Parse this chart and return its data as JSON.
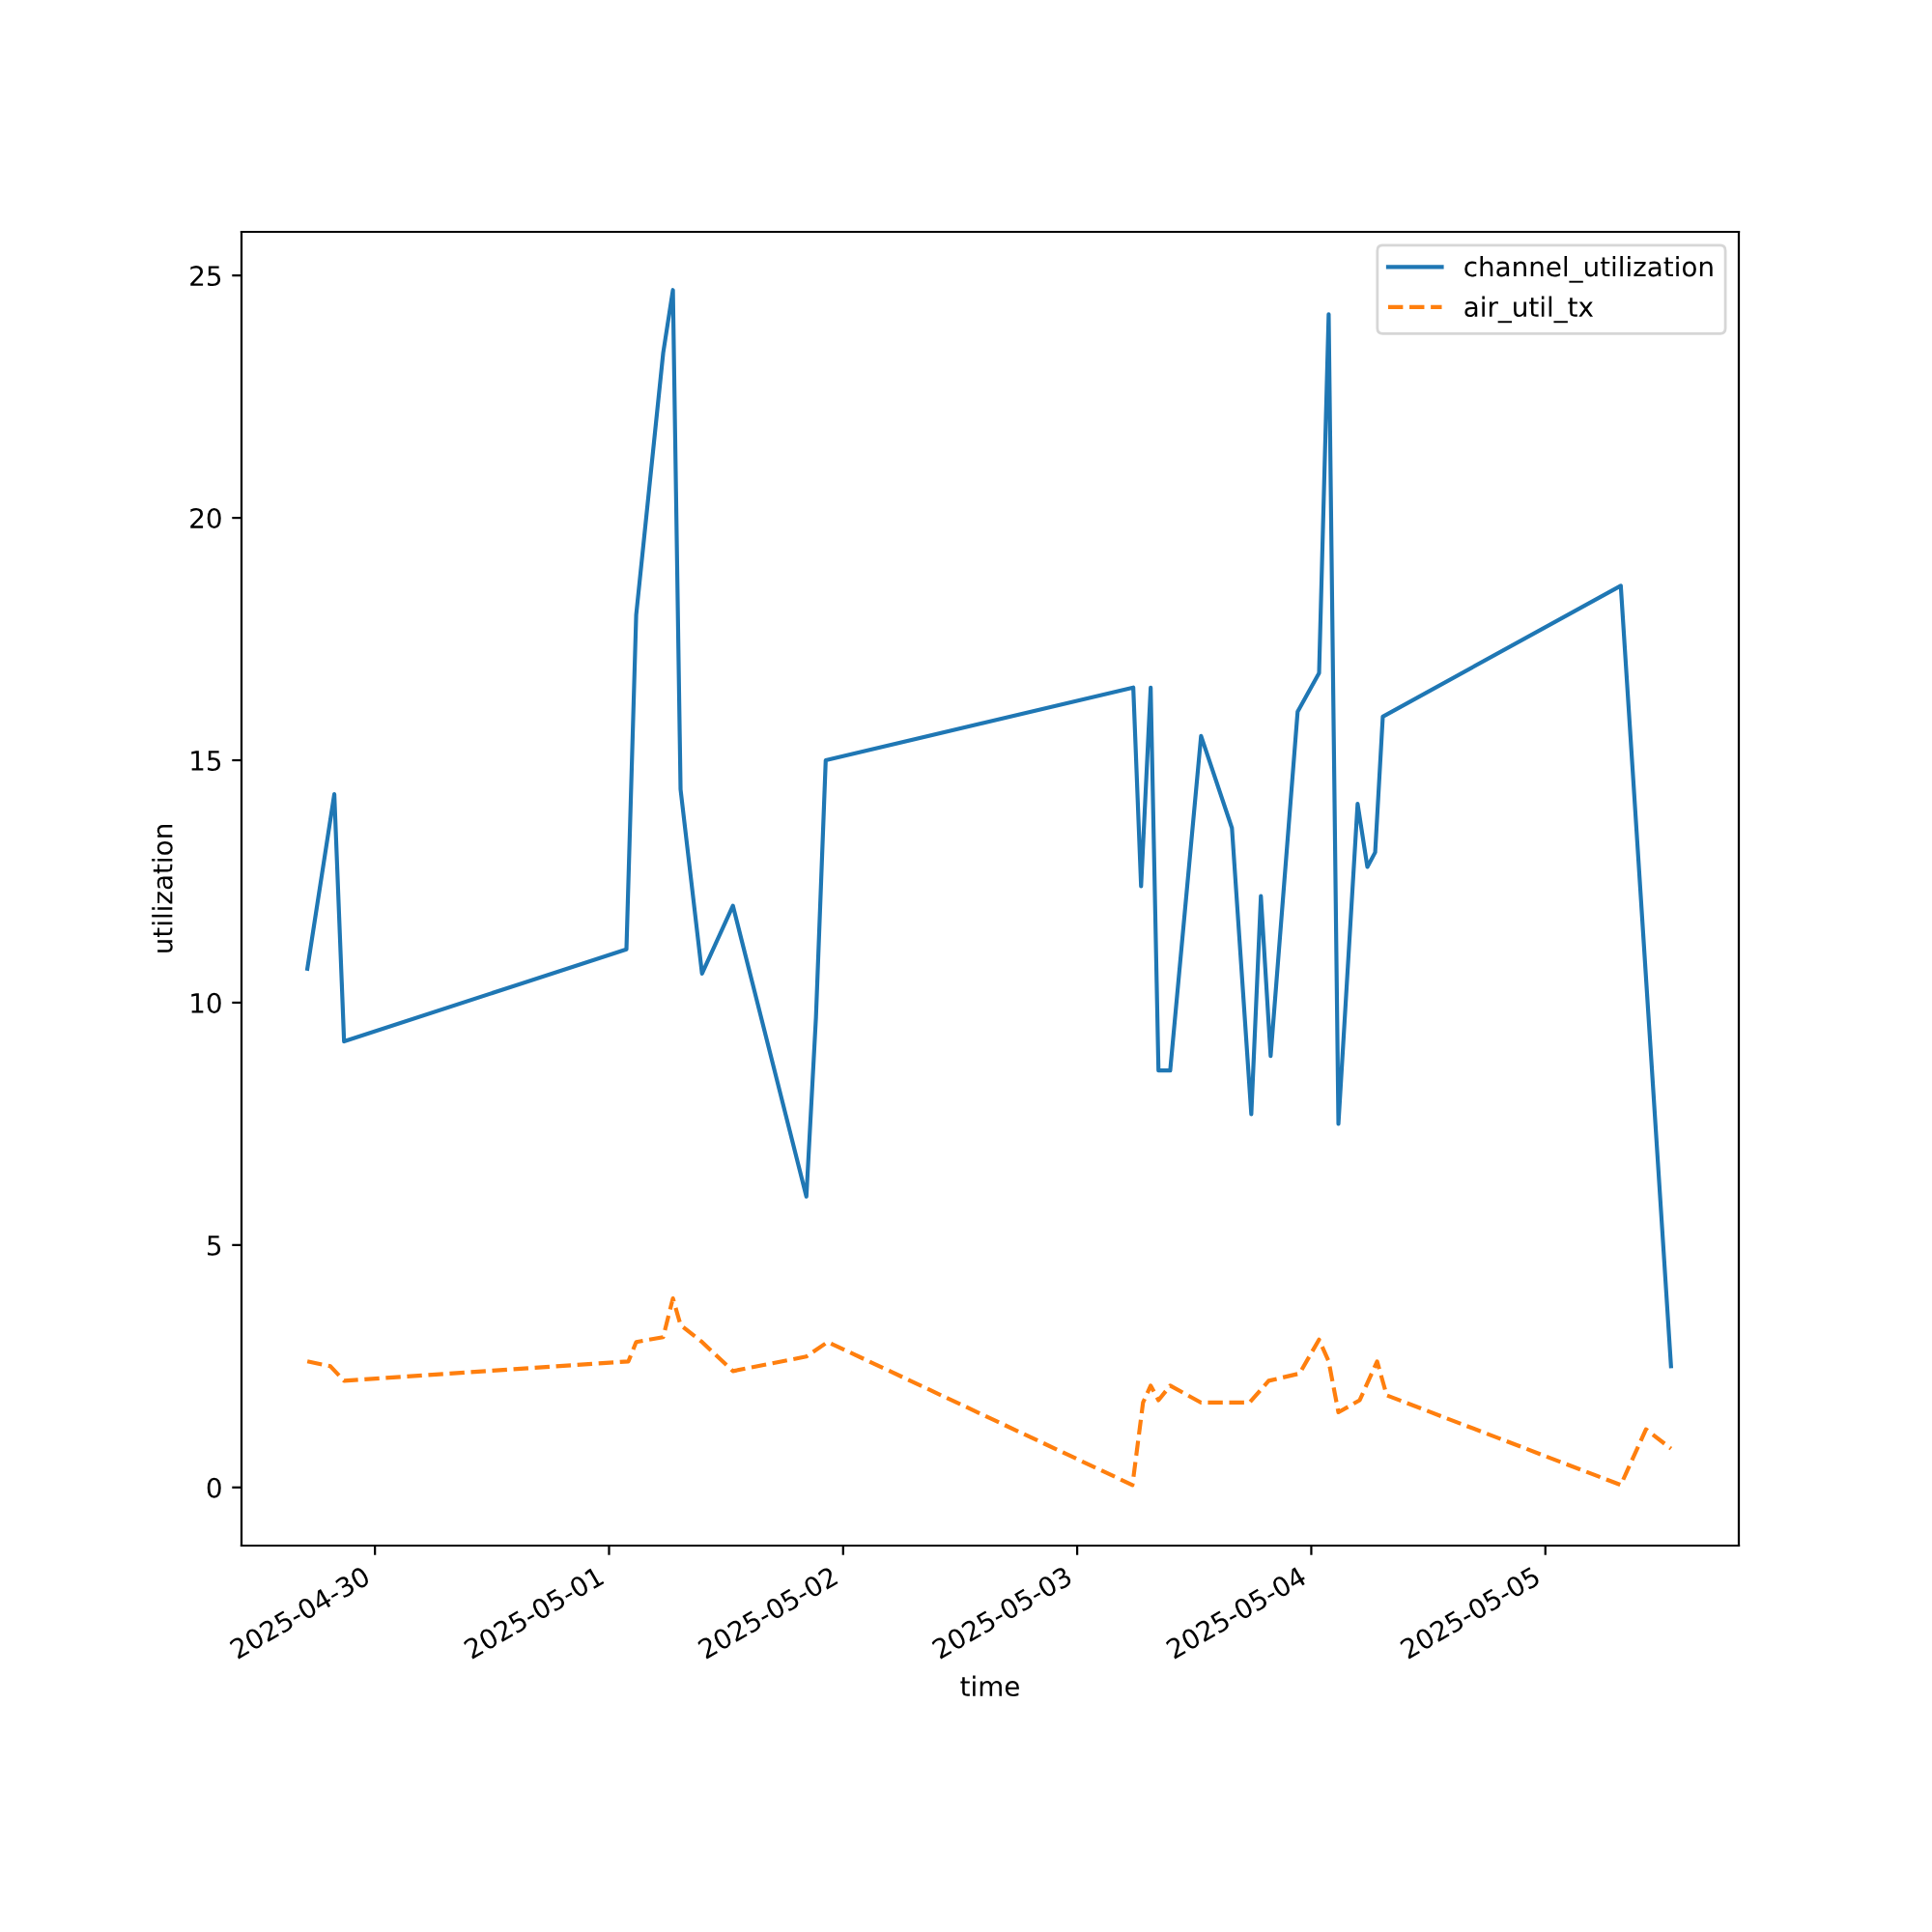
{
  "chart_data": {
    "type": "line",
    "xlabel": "time",
    "ylabel": "utilization",
    "legend": "top right",
    "grid": false,
    "xlim": [
      "2025-04-29T10:19",
      "2025-05-05T19:50"
    ],
    "ylim": [
      -1.2,
      25.9
    ],
    "xticks": [
      "2025-04-30",
      "2025-05-01",
      "2025-05-02",
      "2025-05-03",
      "2025-05-04",
      "2025-05-05"
    ],
    "yticks": [
      0,
      5,
      10,
      15,
      20,
      25
    ],
    "series": [
      {
        "name": "channel_utilization",
        "color": "#1f77b4",
        "line_style": "solid",
        "x": [
          "2025-04-29T17:04",
          "2025-04-29T19:50",
          "2025-04-29T20:50",
          "2025-05-01T01:47",
          "2025-05-01T02:47",
          "2025-05-01T05:33",
          "2025-05-01T06:33",
          "2025-05-01T07:20",
          "2025-05-01T09:32",
          "2025-05-01T12:42",
          "2025-05-01T20:14",
          "2025-05-01T21:13",
          "2025-05-01T22:13",
          "2025-05-03T05:45",
          "2025-05-03T06:33",
          "2025-05-03T07:32",
          "2025-05-03T08:20",
          "2025-05-03T09:32",
          "2025-05-03T12:42",
          "2025-05-03T15:52",
          "2025-05-03T17:51",
          "2025-05-03T18:50",
          "2025-05-03T19:50",
          "2025-05-03T22:36",
          "2025-05-04T00:48",
          "2025-05-04T01:47",
          "2025-05-04T02:47",
          "2025-05-04T04:45",
          "2025-05-04T05:45",
          "2025-05-04T06:33",
          "2025-05-04T07:20",
          "2025-05-05T07:44",
          "2025-05-05T12:53"
        ],
        "values": [
          10.7,
          14.3,
          9.2,
          11.1,
          18.0,
          23.4,
          24.7,
          14.4,
          10.6,
          12.0,
          6.0,
          9.7,
          15.0,
          16.5,
          12.4,
          16.5,
          8.6,
          8.6,
          15.5,
          13.6,
          7.7,
          12.2,
          8.9,
          16.0,
          16.8,
          24.2,
          7.5,
          14.1,
          12.8,
          13.1,
          15.9,
          18.6,
          2.5
        ]
      },
      {
        "name": "air_util_tx",
        "color": "#ff7f0e",
        "line_style": "dashed",
        "x": [
          "2025-04-29T17:04",
          "2025-04-29T19:26",
          "2025-04-29T20:50",
          "2025-05-01T01:59",
          "2025-05-01T02:47",
          "2025-05-01T05:33",
          "2025-05-01T06:33",
          "2025-05-01T07:20",
          "2025-05-01T09:32",
          "2025-05-01T12:42",
          "2025-05-01T20:14",
          "2025-05-01T22:25",
          "2025-05-03T05:40",
          "2025-05-03T06:45",
          "2025-05-03T07:32",
          "2025-05-03T08:20",
          "2025-05-03T09:32",
          "2025-05-03T12:42",
          "2025-05-03T17:40",
          "2025-05-03T19:38",
          "2025-05-03T22:48",
          "2025-05-04T00:48",
          "2025-05-04T01:47",
          "2025-05-04T02:47",
          "2025-05-04T04:58",
          "2025-05-04T06:45",
          "2025-05-04T07:44",
          "2025-05-05T07:44",
          "2025-05-05T10:19",
          "2025-05-05T12:53"
        ],
        "values": [
          2.6,
          2.5,
          2.2,
          2.6,
          3.0,
          3.1,
          3.9,
          3.35,
          3.0,
          2.4,
          2.7,
          3.0,
          0.05,
          1.75,
          2.1,
          1.8,
          2.1,
          1.75,
          1.75,
          2.2,
          2.35,
          3.05,
          2.6,
          1.55,
          1.8,
          2.6,
          1.9,
          0.05,
          1.2,
          0.8
        ]
      }
    ]
  }
}
